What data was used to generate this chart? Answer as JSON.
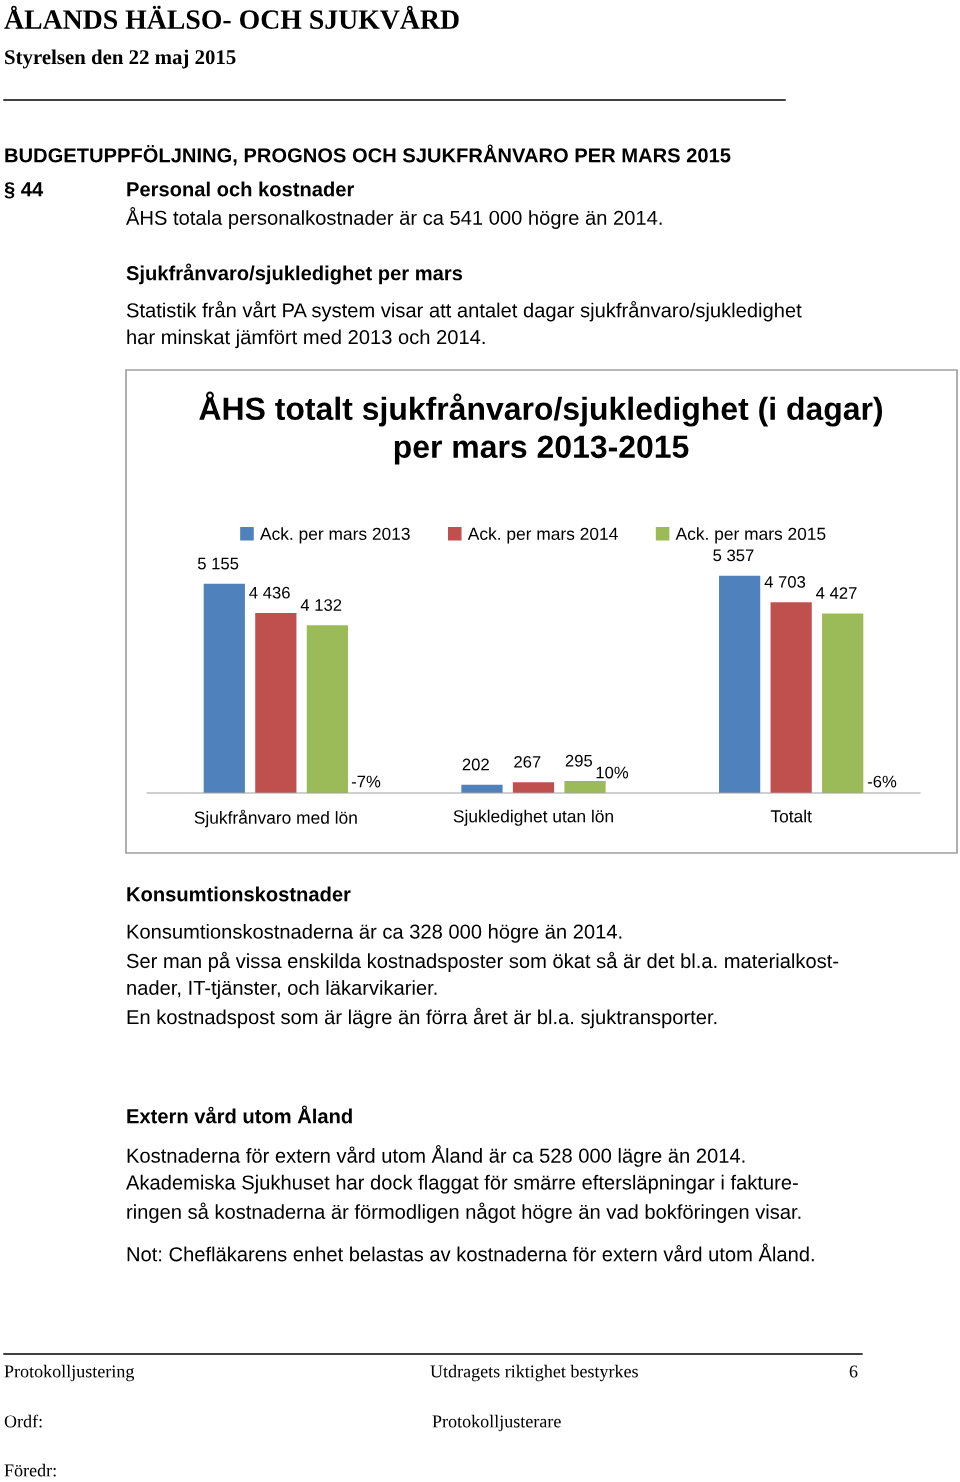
{
  "chart_data": {
    "type": "bar",
    "title": "ÅHS totalt sjukfrånvaro/sjukledighet (i dagar)\nper mars 2013-2015",
    "categories": [
      "Sjukfrånvaro med lön",
      "Sjukledighet utan lön",
      "Totalt"
    ],
    "series": [
      {
        "name": "Ack. per mars 2013",
        "color": "#4f81bd",
        "values": [
          5155,
          202,
          5357
        ],
        "value_labels": [
          "5 155",
          "202",
          "5 357"
        ]
      },
      {
        "name": "Ack. per mars 2014",
        "color": "#c0504d",
        "values": [
          4436,
          267,
          4703
        ],
        "value_labels": [
          "4 436",
          "267",
          "4 703"
        ]
      },
      {
        "name": "Ack. per mars 2015",
        "color": "#9bbb59",
        "values": [
          4132,
          295,
          4427
        ],
        "value_labels": [
          "4 132",
          "295",
          "4 427"
        ]
      }
    ],
    "legend": "top",
    "grid": false,
    "annotations": [
      "-7%",
      "10%",
      "-6%",
      "ÅLANDS HÄLSO- OCH SJUKVÅRD",
      "Styrelsen den 22 maj 2015",
      "BUDGETUPPFÖLJNING, PROGNOS OCH SJUKFRÅNVARO PER MARS 2015",
      "§ 44",
      "Personal och kostnader",
      "ÅHS totala personalkostnader är ca 541 000 högre än 2014.",
      "Sjukfrånvaro/sjukledighet per mars",
      "Statistik från vårt PA system visar att antalet dagar sjukfrånvaro/sjukledighet\nhar minskat jämfört med 2013 och 2014.",
      "Konsumtionskostnader",
      "Konsumtionskostnaderna är ca 328 000 högre än 2014.\nSer man på vissa enskilda kostnadsposter som ökat så är det bl.a. materialkost-\nnader, IT-tjänster, och läkarvikarier.\nEn kostnadspost som är lägre än förra året är bl.a. sjuktransporter.",
      "Extern vård utom Åland",
      "Kostnaderna för extern vård utom Åland är ca 528 000 lägre än 2014.\nAkademiska Sjukhuset har dock flaggat för smärre eftersläpningar i fakture-\nringen så kostnaderna är förmodligen något högre än vad bokföringen visar.",
      "Not: Chefläkarens enhet belastas av kostnaderna för extern vård utom Åland.",
      "Protokolljustering",
      "Utdragets riktighet bestyrkes",
      "6",
      "Ordf:",
      "Protokolljusterare",
      "Föredr:"
    ]
  }
}
